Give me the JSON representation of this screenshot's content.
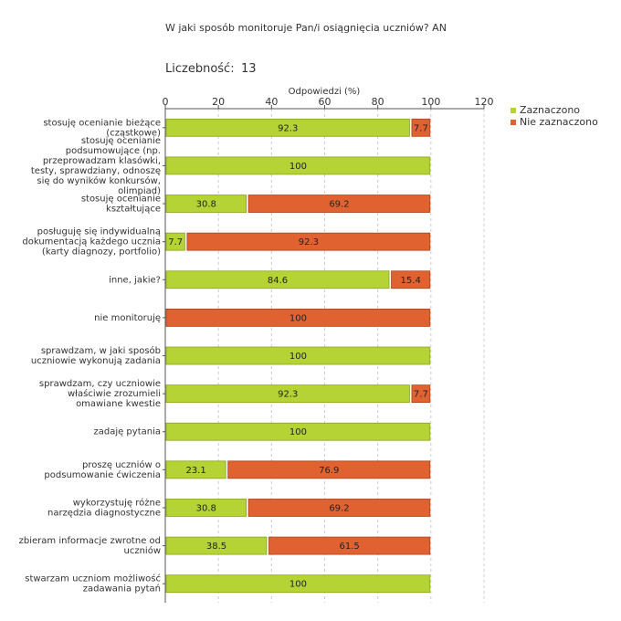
{
  "header": {
    "title": "W jaki sposób monitoruje Pan/i osiągnięcia uczniów?  AN",
    "count_label": "Liczebność:",
    "count_value": "13"
  },
  "chart_data": {
    "type": "bar",
    "orientation": "horizontal",
    "stacked": true,
    "xlabel": "Odpowiedzi (%)",
    "xlim": [
      0,
      120
    ],
    "xticks": [
      0,
      20,
      40,
      60,
      80,
      100,
      120
    ],
    "grid": true,
    "legend_position": "top-right",
    "categories": [
      [
        "stosuję ocenianie bieżące",
        "(cząstkowe)"
      ],
      [
        "stosuję ocenianie",
        "podsumowujące (np.",
        "przeprowadzam klasówki,",
        "testy, sprawdziany, odnoszę",
        "się do wyników konkursów,",
        "olimpiad)"
      ],
      [
        "stosuję ocenianie",
        "kształtujące"
      ],
      [
        "posługuję się indywidualną",
        "dokumentacją każdego ucznia",
        "(karty diagnozy, portfolio)"
      ],
      [
        "inne, jakie?"
      ],
      [
        "nie monitoruję"
      ],
      [
        "sprawdzam, w jaki sposób",
        "uczniowie wykonują zadania"
      ],
      [
        "sprawdzam, czy uczniowie",
        "właściwie zrozumieli",
        "omawiane kwestie"
      ],
      [
        "zadaję pytania"
      ],
      [
        "proszę uczniów o",
        "podsumowanie ćwiczenia"
      ],
      [
        "wykorzystuję różne",
        "narzędzia diagnostyczne"
      ],
      [
        "zbieram informacje zwrotne od",
        "uczniów"
      ],
      [
        "stwarzam uczniom możliwość",
        "zadawania pytań"
      ]
    ],
    "series": [
      {
        "name": "Zaznaczono",
        "color": "#b5d334",
        "stroke": "#8aa41c",
        "values": [
          92.3,
          100,
          30.8,
          7.7,
          84.6,
          0,
          100,
          92.3,
          100,
          23.1,
          30.8,
          38.5,
          100
        ]
      },
      {
        "name": "Nie zaznaczono",
        "color": "#e06230",
        "stroke": "#a8441c",
        "values": [
          7.7,
          0,
          69.2,
          92.3,
          15.4,
          100,
          0,
          7.7,
          0,
          76.9,
          69.2,
          61.5,
          0
        ]
      }
    ]
  }
}
